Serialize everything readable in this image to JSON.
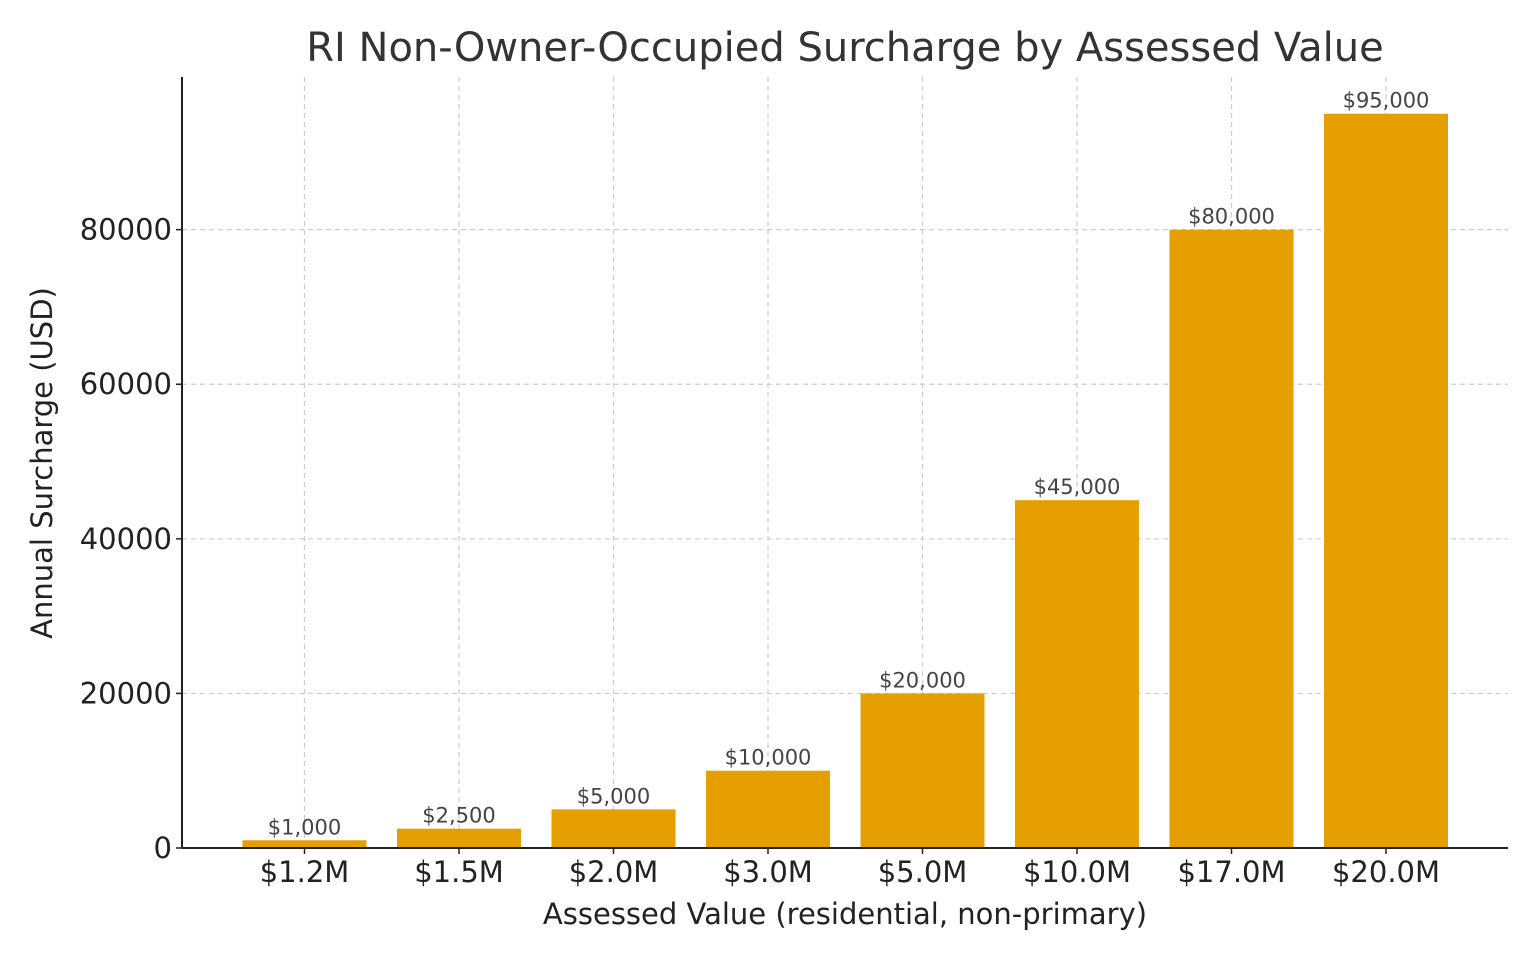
{
  "chart_data": {
    "type": "bar",
    "title": "RI Non-Owner-Occupied Surcharge by Assessed Value",
    "xlabel": "Assessed Value (residential, non-primary)",
    "ylabel": "Annual Surcharge (USD)",
    "categories": [
      "$1.2M",
      "$1.5M",
      "$2.0M",
      "$3.0M",
      "$5.0M",
      "$10.0M",
      "$17.0M",
      "$20.0M"
    ],
    "values": [
      1000,
      2500,
      5000,
      10000,
      20000,
      45000,
      80000,
      95000
    ],
    "data_labels": [
      "$1,000",
      "$2,500",
      "$5,000",
      "$10,000",
      "$20,000",
      "$45,000",
      "$80,000",
      "$95,000"
    ],
    "y_ticks": [
      "0",
      "20000",
      "40000",
      "60000",
      "80000"
    ],
    "y_tick_values": [
      0,
      20000,
      40000,
      60000,
      80000
    ],
    "ylim": [
      0,
      99750
    ],
    "grid": true,
    "bar_color": "#e69f00"
  }
}
